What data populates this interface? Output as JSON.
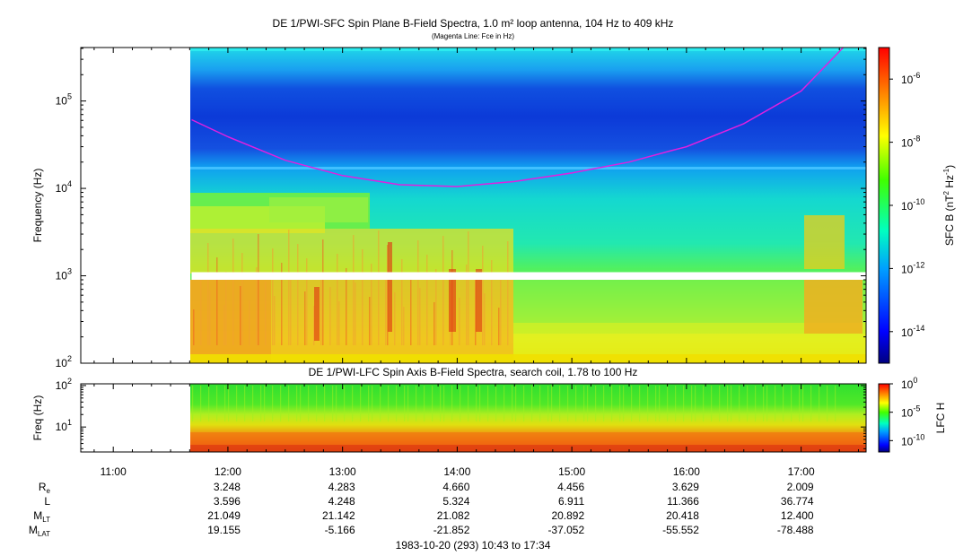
{
  "chart_data": [
    {
      "type": "heatmap",
      "title": "DE 1/PWI-SFC  Spin Plane B-Field Spectra, 1.0 m² loop antenna, 104 Hz to 409 kHz",
      "subtitle": "(Magenta Line: Fce in Hz)",
      "ylabel": "Frequency (Hz)",
      "yscale": "log",
      "ylim": [
        100,
        409000
      ],
      "yticks": [
        {
          "value": 100,
          "base": "10",
          "exp": "2"
        },
        {
          "value": 1000,
          "base": "10",
          "exp": "3"
        },
        {
          "value": 10000,
          "base": "10",
          "exp": "4"
        },
        {
          "value": 100000,
          "base": "10",
          "exp": "5"
        }
      ],
      "colorbar": {
        "label_parts": [
          "SFC B (nT",
          "2",
          " Hz",
          "-1",
          ")"
        ],
        "scale": "log",
        "range": [
          1e-15,
          1e-05
        ],
        "ticks": [
          {
            "value": 1e-06,
            "base": "10",
            "exp": "-6"
          },
          {
            "value": 1e-08,
            "base": "10",
            "exp": "-8"
          },
          {
            "value": 1e-10,
            "base": "10",
            "exp": "-10"
          },
          {
            "value": 1e-12,
            "base": "10",
            "exp": "-12"
          },
          {
            "value": 1e-14,
            "base": "10",
            "exp": "-14"
          }
        ]
      },
      "data_start": "11:41",
      "data_gap_hz": [
        900,
        1100
      ],
      "series": [
        {
          "name": "Fce",
          "color": "#e020e0",
          "x": [
            "11:41",
            "12:00",
            "12:30",
            "13:00",
            "13:30",
            "14:00",
            "14:30",
            "15:00",
            "15:30",
            "15:52",
            "16:00",
            "16:30",
            "17:00",
            "17:22"
          ],
          "y": [
            61000,
            39000,
            21000,
            14000,
            11000,
            10500,
            12000,
            15000,
            20000,
            27000,
            30000,
            55000,
            130000,
            409000
          ]
        }
      ]
    },
    {
      "type": "heatmap",
      "title": "DE 1/PWI-LFC  Spin Axis B-Field Spectra, search coil, 1.78 to 100 Hz",
      "ylabel": "Freq (Hz)",
      "yscale": "log",
      "ylim": [
        2.5,
        110
      ],
      "yticks": [
        {
          "value": 10,
          "base": "10",
          "exp": "1"
        },
        {
          "value": 100,
          "base": "10",
          "exp": "2"
        }
      ],
      "colorbar": {
        "label": "LFC H",
        "scale": "log",
        "range": [
          1e-12,
          1
        ],
        "ticks": [
          {
            "value": 1,
            "base": "10",
            "exp": "0"
          },
          {
            "value": 1e-05,
            "base": "10",
            "exp": "-5"
          },
          {
            "value": 1e-10,
            "base": "10",
            "exp": "-10"
          }
        ]
      },
      "data_start": "11:41"
    }
  ],
  "time_axis": {
    "start": "10:43",
    "end": "17:34",
    "labels": [
      "11:00",
      "12:00",
      "13:00",
      "14:00",
      "15:00",
      "16:00",
      "17:00"
    ]
  },
  "ephemeris": {
    "rows": [
      {
        "label": "R",
        "sub": "e",
        "values": [
          "3.248",
          "4.283",
          "4.660",
          "4.456",
          "3.629",
          "2.009"
        ]
      },
      {
        "label": "L",
        "sub": "",
        "values": [
          "3.596",
          "4.248",
          "5.324",
          "6.911",
          "11.366",
          "36.774"
        ]
      },
      {
        "label": "M",
        "sub": "LT",
        "values": [
          "21.049",
          "21.142",
          "21.082",
          "20.892",
          "20.418",
          "12.400"
        ]
      },
      {
        "label": "M",
        "sub": "LAT",
        "values": [
          "19.155",
          "-5.166",
          "-21.852",
          "-37.052",
          "-55.552",
          "-78.488"
        ]
      }
    ],
    "at": [
      "12:00",
      "13:00",
      "14:00",
      "15:00",
      "16:00",
      "17:00"
    ]
  },
  "footer": "1983-10-20 (293) 10:43 to 17:34"
}
